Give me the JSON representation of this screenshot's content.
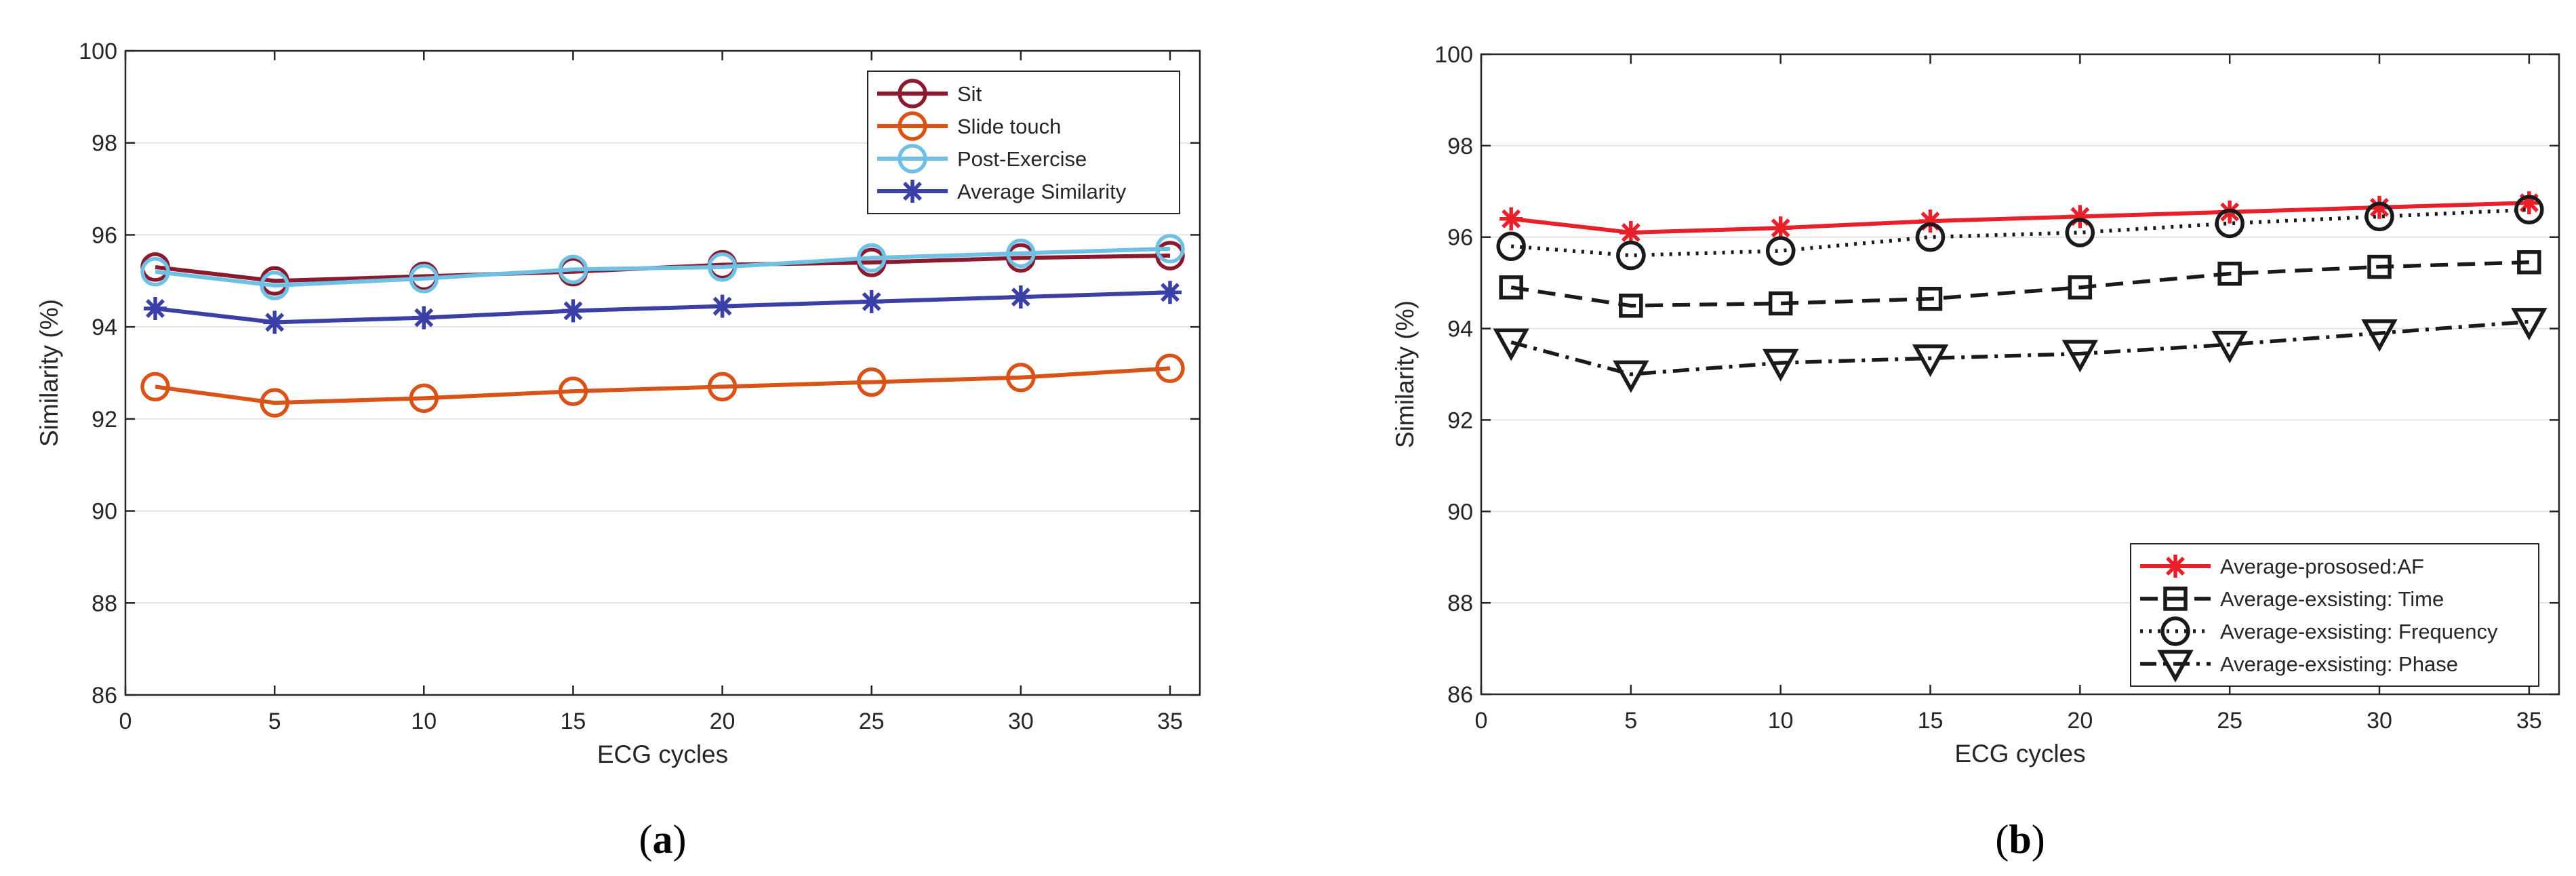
{
  "colors": {
    "sit": "#8B1A2E",
    "slide_touch": "#D95319",
    "post_exercise": "#6EC1E4",
    "average_similarity": "#3B3FA8",
    "proposed": "#E8202A",
    "existing": "#1A1A1A",
    "grid": "#E4E4E4",
    "axis": "#262626"
  },
  "chart_data": [
    {
      "type": "line",
      "caption": "(a)",
      "caption_parts": [
        "(",
        "a",
        ")"
      ],
      "xlabel": "ECG cycles",
      "ylabel": "Similarity (%)",
      "xlim": [
        0,
        36
      ],
      "ylim": [
        86,
        100
      ],
      "xticks": [
        0,
        5,
        10,
        15,
        20,
        25,
        30,
        35
      ],
      "yticks": [
        86,
        88,
        90,
        92,
        94,
        96,
        98,
        100
      ],
      "grid": true,
      "legend_position": "top-right",
      "x": [
        1,
        5,
        10,
        15,
        20,
        25,
        30,
        35
      ],
      "series": [
        {
          "name": "Sit",
          "marker": "circle",
          "line": "solid",
          "color_key": "sit",
          "values": [
            95.3,
            95.0,
            95.1,
            95.2,
            95.35,
            95.4,
            95.5,
            95.55
          ]
        },
        {
          "name": "Slide touch",
          "marker": "circle",
          "line": "solid",
          "color_key": "slide_touch",
          "values": [
            92.7,
            92.35,
            92.45,
            92.6,
            92.7,
            92.8,
            92.9,
            93.1
          ]
        },
        {
          "name": "Post-Exercise",
          "marker": "circle",
          "line": "solid",
          "color_key": "post_exercise",
          "values": [
            95.2,
            94.9,
            95.05,
            95.25,
            95.3,
            95.5,
            95.6,
            95.7
          ]
        },
        {
          "name": "Average Similarity",
          "marker": "asterisk",
          "line": "solid",
          "color_key": "average_similarity",
          "values": [
            94.4,
            94.1,
            94.2,
            94.35,
            94.45,
            94.55,
            94.65,
            94.75
          ]
        }
      ]
    },
    {
      "type": "line",
      "caption": "(b)",
      "caption_parts": [
        "(",
        "b",
        ")"
      ],
      "xlabel": "ECG cycles",
      "ylabel": "Similarity (%)",
      "xlim": [
        0,
        36
      ],
      "ylim": [
        86,
        100
      ],
      "xticks": [
        0,
        5,
        10,
        15,
        20,
        25,
        30,
        35
      ],
      "yticks": [
        86,
        88,
        90,
        92,
        94,
        96,
        98,
        100
      ],
      "grid": true,
      "legend_position": "bottom-right",
      "x": [
        1,
        5,
        10,
        15,
        20,
        25,
        30,
        35
      ],
      "series": [
        {
          "name": "Average-prososed:AF",
          "marker": "asterisk",
          "line": "solid",
          "color_key": "proposed",
          "values": [
            96.4,
            96.1,
            96.2,
            96.35,
            96.45,
            96.55,
            96.65,
            96.75
          ]
        },
        {
          "name": "Average-exsisting: Time",
          "marker": "square",
          "line": "dashed",
          "color_key": "existing",
          "values": [
            94.9,
            94.5,
            94.55,
            94.65,
            94.9,
            95.2,
            95.35,
            95.45
          ]
        },
        {
          "name": "Average-exsisting: Frequency",
          "marker": "circle",
          "line": "dotted",
          "color_key": "existing",
          "values": [
            95.8,
            95.6,
            95.7,
            96.0,
            96.1,
            96.3,
            96.45,
            96.6
          ]
        },
        {
          "name": "Average-exsisting: Phase",
          "marker": "triangle-down",
          "line": "dashdot",
          "color_key": "existing",
          "values": [
            93.7,
            93.0,
            93.25,
            93.35,
            93.45,
            93.65,
            93.9,
            94.15
          ]
        }
      ]
    }
  ]
}
